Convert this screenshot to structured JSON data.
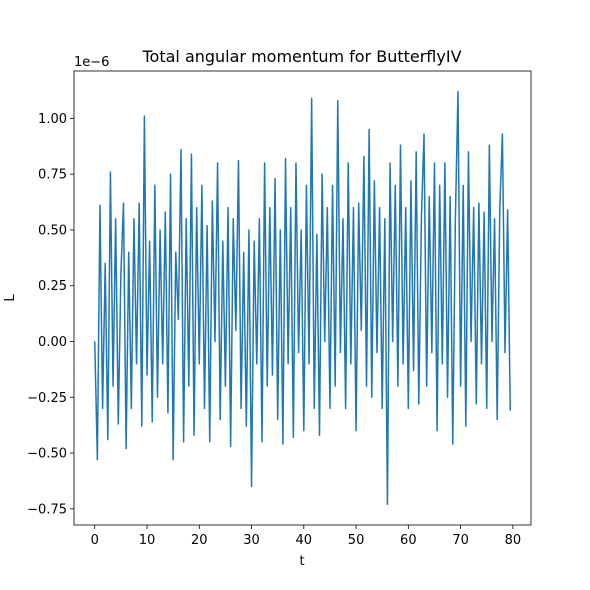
{
  "chart_data": {
    "type": "line",
    "title": "Total angular momentum for ButterflyIV",
    "x_label": "t",
    "y_label": "L",
    "y_offset_label": "1e−6",
    "x": [
      0,
      0.5,
      1,
      1.5,
      2,
      2.5,
      3,
      3.5,
      4,
      4.5,
      5,
      5.5,
      6,
      6.5,
      7,
      7.5,
      8,
      8.5,
      9,
      9.5,
      10,
      10.5,
      11,
      11.5,
      12,
      12.5,
      13,
      13.5,
      14,
      14.5,
      15,
      15.5,
      16,
      16.5,
      17,
      17.5,
      18,
      18.5,
      19,
      19.5,
      20,
      20.5,
      21,
      21.5,
      22,
      22.5,
      23,
      23.5,
      24,
      24.5,
      25,
      25.5,
      26,
      26.5,
      27,
      27.5,
      28,
      28.5,
      29,
      29.5,
      30,
      30.5,
      31,
      31.5,
      32,
      32.5,
      33,
      33.5,
      34,
      34.5,
      35,
      35.5,
      36,
      36.5,
      37,
      37.5,
      38,
      38.5,
      39,
      39.5,
      40,
      40.5,
      41,
      41.5,
      42,
      42.5,
      43,
      43.5,
      44,
      44.5,
      45,
      45.5,
      46,
      46.5,
      47,
      47.5,
      48,
      48.5,
      49,
      49.5,
      50,
      50.5,
      51,
      51.5,
      52,
      52.5,
      53,
      53.5,
      54,
      54.5,
      55,
      55.5,
      56,
      56.5,
      57,
      57.5,
      58,
      58.5,
      59,
      59.5,
      60,
      60.5,
      61,
      61.5,
      62,
      62.5,
      63,
      63.5,
      64,
      64.5,
      65,
      65.5,
      66,
      66.5,
      67,
      67.5,
      68,
      68.5,
      69,
      69.5,
      70,
      70.5,
      71,
      71.5,
      72,
      72.5,
      73,
      73.5,
      74,
      74.5,
      75,
      75.5,
      76,
      76.5,
      77,
      77.5,
      78,
      78.5,
      79,
      79.5
    ],
    "series": [
      {
        "name": "L",
        "color": "#1f77b4",
        "values": [
          0,
          -0.53,
          0.61,
          -0.3,
          0.35,
          -0.44,
          0.76,
          -0.2,
          0.55,
          -0.37,
          0.3,
          0.62,
          -0.48,
          0.4,
          -0.3,
          0.55,
          -0.1,
          0.62,
          -0.38,
          1.01,
          -0.15,
          0.45,
          -0.36,
          0.7,
          -0.25,
          0.5,
          -0.1,
          0.58,
          -0.32,
          0.75,
          -0.53,
          0.4,
          0.1,
          0.86,
          -0.45,
          0.55,
          -0.2,
          0.84,
          -0.42,
          0.6,
          -0.1,
          0.7,
          -0.3,
          0.52,
          -0.45,
          0.63,
          0.0,
          0.8,
          -0.35,
          0.45,
          -0.2,
          0.6,
          -0.47,
          0.55,
          0.05,
          0.81,
          -0.3,
          0.4,
          -0.38,
          0.5,
          -0.65,
          0.45,
          -0.1,
          0.55,
          -0.45,
          0.8,
          -0.2,
          0.6,
          -0.15,
          0.73,
          -0.35,
          0.5,
          -0.46,
          0.82,
          -0.1,
          0.6,
          -0.43,
          0.8,
          -0.05,
          0.5,
          -0.4,
          0.7,
          -0.1,
          1.09,
          -0.3,
          0.48,
          -0.42,
          0.75,
          0.0,
          0.6,
          -0.3,
          0.7,
          -0.2,
          1.08,
          -0.05,
          0.55,
          -0.3,
          0.8,
          -0.1,
          0.6,
          -0.4,
          0.62,
          0.05,
          0.83,
          -0.2,
          0.95,
          -0.25,
          0.72,
          -0.05,
          0.6,
          -0.3,
          0.55,
          -0.73,
          0.8,
          0.0,
          0.7,
          -0.2,
          0.88,
          -0.1,
          0.6,
          -0.3,
          0.72,
          -0.13,
          0.85,
          -0.28,
          0.55,
          0.93,
          -0.2,
          0.65,
          -0.05,
          0.8,
          -0.4,
          0.7,
          -0.1,
          0.8,
          -0.25,
          0.65,
          -0.46,
          0.55,
          1.12,
          -0.2,
          0.7,
          -0.38,
          0.85,
          0.0,
          0.6,
          -0.28,
          0.62,
          -0.1,
          0.58,
          -0.3,
          0.88,
          0.0,
          0.55,
          -0.35,
          0.6,
          0.93,
          -0.05,
          0.59,
          -0.31
        ]
      }
    ],
    "xlim": [
      -3.97,
      83.47
    ],
    "xticks": [
      0,
      10,
      20,
      30,
      40,
      50,
      60,
      70,
      80
    ],
    "ylim": [
      -0.8225,
      1.2125
    ],
    "yticks": [
      {
        "value": -0.75,
        "label": "−0.75"
      },
      {
        "value": -0.5,
        "label": "−0.50"
      },
      {
        "value": -0.25,
        "label": "−0.25"
      },
      {
        "value": 0,
        "label": "0.00"
      },
      0.25,
      {
        "value": 0.5,
        "label": "0.50"
      },
      0.75,
      {
        "value": 1,
        "label": "1.00"
      }
    ],
    "grid": false
  }
}
